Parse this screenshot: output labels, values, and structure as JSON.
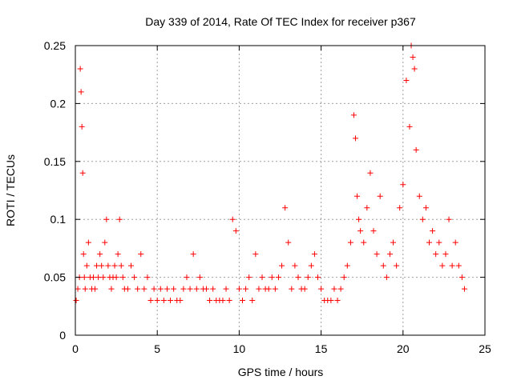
{
  "chart_data": {
    "type": "scatter",
    "title": "Day 339 of 2014, Rate Of TEC Index for receiver p367",
    "xlabel": "GPS time / hours",
    "ylabel": "ROTI / TECUs",
    "xlim": [
      0,
      25
    ],
    "ylim": [
      0,
      0.25
    ],
    "xticks": [
      0,
      5,
      10,
      15,
      20,
      25
    ],
    "yticks": [
      0,
      0.05,
      0.1,
      0.15,
      0.2,
      0.25
    ],
    "xtick_labels": [
      "0",
      "5",
      "10",
      "15",
      "20",
      "25"
    ],
    "ytick_labels": [
      "0",
      "0.05",
      "0.1",
      "0.15",
      "0.2",
      "0.25"
    ],
    "grid": true,
    "marker": "+",
    "marker_color": "#ff0000",
    "series": [
      {
        "x": [
          0.05,
          0.15,
          0.25,
          0.3,
          0.35,
          0.4,
          0.45,
          0.5,
          0.55,
          0.6,
          0.7,
          0.8,
          0.9,
          1.0,
          1.1,
          1.2,
          1.3,
          1.4,
          1.5,
          1.6,
          1.7,
          1.8,
          1.9,
          2.0,
          2.1,
          2.2,
          2.3,
          2.4,
          2.5,
          2.6,
          2.7,
          2.8,
          2.9,
          3.0,
          3.2,
          3.4,
          3.6,
          3.8,
          4.0,
          4.2,
          4.4,
          4.6,
          4.8,
          5.0,
          5.2,
          5.4,
          5.6,
          5.8,
          6.0,
          6.2,
          6.4,
          6.6,
          6.8,
          7.0,
          7.2,
          7.4,
          7.6,
          7.8,
          8.0,
          8.2,
          8.4,
          8.6,
          8.8,
          9.0,
          9.2,
          9.4,
          9.6,
          9.8,
          10.0,
          10.2,
          10.4,
          10.6,
          10.8,
          11.0,
          11.2,
          11.4,
          11.6,
          11.8,
          12.0,
          12.2,
          12.4,
          12.6,
          12.8,
          13.0,
          13.2,
          13.4,
          13.6,
          13.8,
          14.0,
          14.2,
          14.4,
          14.6,
          14.8,
          15.0,
          15.2,
          15.4,
          15.6,
          15.8,
          16.0,
          16.2,
          16.4,
          16.6,
          16.8,
          17.0,
          17.1,
          17.2,
          17.3,
          17.4,
          17.6,
          17.8,
          18.0,
          18.2,
          18.4,
          18.6,
          18.8,
          19.0,
          19.2,
          19.4,
          19.6,
          19.8,
          20.0,
          20.2,
          20.4,
          20.5,
          20.6,
          20.7,
          20.8,
          21.0,
          21.2,
          21.4,
          21.6,
          21.8,
          22.0,
          22.2,
          22.4,
          22.6,
          22.8,
          23.0,
          23.2,
          23.4,
          23.6,
          23.75
        ],
        "y": [
          0.03,
          0.04,
          0.05,
          0.23,
          0.21,
          0.18,
          0.14,
          0.07,
          0.05,
          0.04,
          0.06,
          0.08,
          0.05,
          0.04,
          0.05,
          0.04,
          0.06,
          0.05,
          0.07,
          0.06,
          0.05,
          0.08,
          0.1,
          0.06,
          0.05,
          0.04,
          0.05,
          0.06,
          0.05,
          0.07,
          0.1,
          0.06,
          0.05,
          0.04,
          0.04,
          0.06,
          0.05,
          0.04,
          0.07,
          0.04,
          0.05,
          0.03,
          0.04,
          0.03,
          0.04,
          0.03,
          0.04,
          0.03,
          0.04,
          0.03,
          0.03,
          0.04,
          0.05,
          0.04,
          0.07,
          0.04,
          0.05,
          0.04,
          0.04,
          0.03,
          0.04,
          0.03,
          0.03,
          0.03,
          0.04,
          0.03,
          0.1,
          0.09,
          0.04,
          0.03,
          0.04,
          0.05,
          0.03,
          0.07,
          0.04,
          0.05,
          0.04,
          0.04,
          0.05,
          0.04,
          0.05,
          0.06,
          0.11,
          0.08,
          0.04,
          0.06,
          0.05,
          0.04,
          0.04,
          0.05,
          0.06,
          0.07,
          0.05,
          0.04,
          0.03,
          0.03,
          0.03,
          0.04,
          0.03,
          0.04,
          0.05,
          0.06,
          0.08,
          0.19,
          0.17,
          0.12,
          0.1,
          0.09,
          0.08,
          0.11,
          0.14,
          0.09,
          0.07,
          0.12,
          0.06,
          0.05,
          0.07,
          0.08,
          0.06,
          0.11,
          0.13,
          0.22,
          0.18,
          0.25,
          0.24,
          0.23,
          0.16,
          0.12,
          0.1,
          0.11,
          0.08,
          0.09,
          0.07,
          0.08,
          0.06,
          0.07,
          0.1,
          0.06,
          0.08,
          0.06,
          0.05,
          0.04
        ]
      }
    ]
  }
}
